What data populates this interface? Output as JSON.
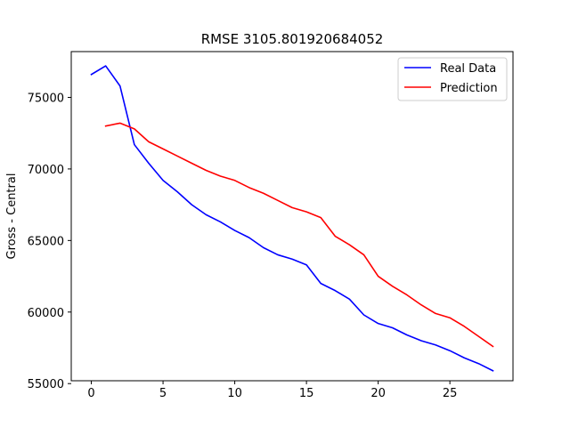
{
  "chart_data": {
    "type": "line",
    "title": "RMSE 3105.801920684052",
    "xlabel": "",
    "ylabel": "Gross - Central",
    "xlim": [
      -1.4,
      29.4
    ],
    "ylim": [
      55200,
      78200
    ],
    "xticks": [
      0,
      5,
      10,
      15,
      20,
      25
    ],
    "yticks": [
      55000,
      60000,
      65000,
      70000,
      75000
    ],
    "grid": false,
    "legend_position": "top-right",
    "series": [
      {
        "name": "Real Data",
        "color": "#0000ff",
        "x": [
          0,
          1,
          2,
          3,
          4,
          5,
          6,
          7,
          8,
          9,
          10,
          11,
          12,
          13,
          14,
          15,
          16,
          17,
          18,
          19,
          20,
          21,
          22,
          23,
          24,
          25,
          26,
          27,
          28
        ],
        "y": [
          76600,
          77200,
          75800,
          71700,
          70400,
          69200,
          68400,
          67500,
          66800,
          66300,
          65700,
          65200,
          64500,
          64000,
          63700,
          63300,
          62000,
          61500,
          60900,
          59800,
          59200,
          58900,
          58400,
          58000,
          57700,
          57300,
          56800,
          56400,
          55900
        ]
      },
      {
        "name": "Prediction",
        "color": "#ff0000",
        "x": [
          1,
          2,
          3,
          4,
          5,
          6,
          7,
          8,
          9,
          10,
          11,
          12,
          13,
          14,
          15,
          16,
          17,
          18,
          19,
          20,
          21,
          22,
          23,
          24,
          25,
          26,
          27,
          28
        ],
        "y": [
          73000,
          73200,
          72800,
          71900,
          71400,
          70900,
          70400,
          69900,
          69500,
          69200,
          68700,
          68300,
          67800,
          67300,
          67000,
          66600,
          65300,
          64700,
          64000,
          62500,
          61800,
          61200,
          60500,
          59900,
          59600,
          59000,
          58300,
          57600
        ]
      }
    ]
  }
}
